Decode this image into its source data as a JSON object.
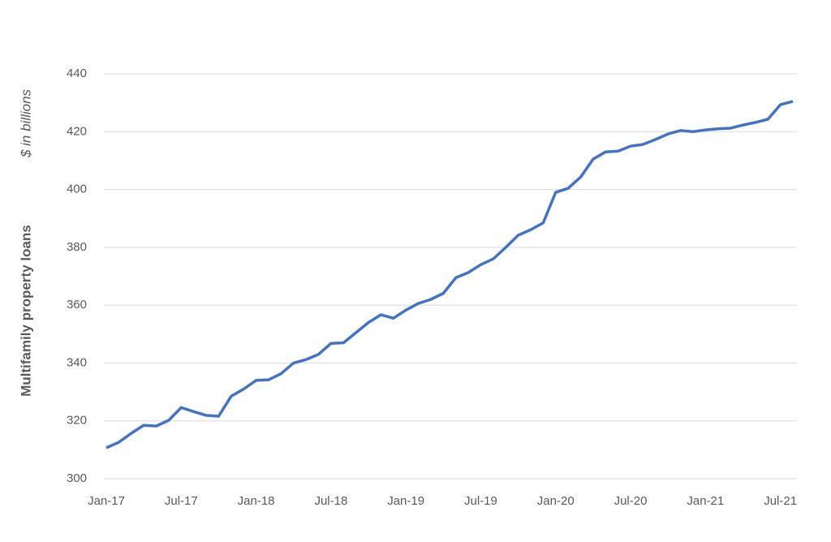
{
  "chart_data": {
    "type": "line",
    "y_title": "Multifamily property loans",
    "y_subtitle": "$ in billions",
    "categories": [
      "Jan-17",
      null,
      null,
      null,
      null,
      null,
      "Jul-17",
      null,
      null,
      null,
      null,
      null,
      "Jan-18",
      null,
      null,
      null,
      null,
      null,
      "Jul-18",
      null,
      null,
      null,
      null,
      null,
      "Jan-19",
      null,
      null,
      null,
      null,
      null,
      "Jul-19",
      null,
      null,
      null,
      null,
      null,
      "Jan-20",
      null,
      null,
      null,
      null,
      null,
      "Jul-20",
      null,
      null,
      null,
      null,
      null,
      "Jan-21",
      null,
      null,
      null,
      null,
      null,
      "Jul-21",
      null
    ],
    "series": [
      {
        "name": "Multifamily property loans",
        "color": "#4472c4",
        "values": [
          310.7,
          312.6,
          315.7,
          318.5,
          318.2,
          320.2,
          324.6,
          323.2,
          321.9,
          321.6,
          328.5,
          331,
          334,
          334.2,
          336.3,
          340,
          341.2,
          343,
          346.8,
          347,
          350.5,
          354,
          356.7,
          355.5,
          358.3,
          360.6,
          362,
          364.1,
          369.5,
          371.3,
          374,
          376,
          380,
          384.2,
          386.1,
          388.5,
          399,
          400.4,
          404.3,
          410.5,
          413,
          413.3,
          415,
          415.6,
          417.3,
          419.2,
          420.4,
          420,
          420.6,
          421,
          421.2,
          422.3,
          423.2,
          424.3,
          429.3,
          430.5
        ]
      }
    ],
    "ylim": [
      300,
      440
    ],
    "yticks": [
      300,
      320,
      340,
      360,
      380,
      400,
      420,
      440
    ],
    "grid": true
  }
}
